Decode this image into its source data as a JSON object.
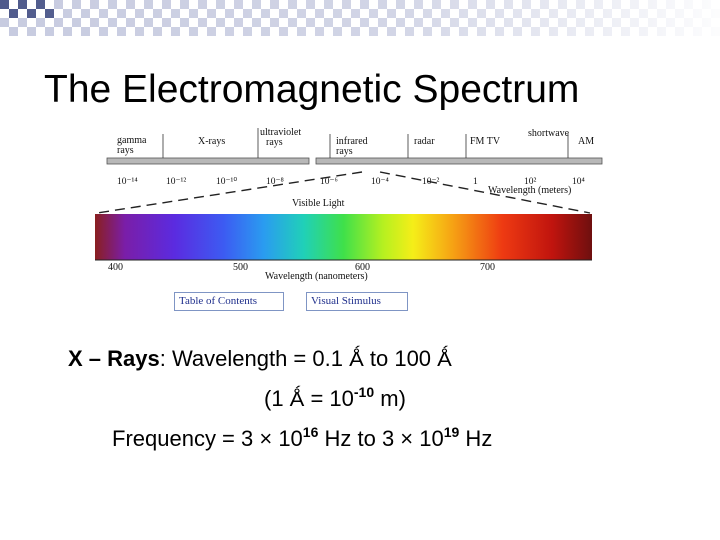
{
  "slide": {
    "title": "The Electromagnetic Spectrum"
  },
  "spectrum": {
    "bands": [
      "gamma\nrays",
      "X-rays",
      "ultraviolet\nrays",
      "infrared\nrays",
      "radar",
      "FM  TV",
      "shortwave",
      "AM"
    ],
    "wavelength_labels": [
      "10⁻¹⁴",
      "10⁻¹²",
      "10⁻¹⁰",
      "10⁻⁸",
      "10⁻⁶",
      "10⁻⁴",
      "10⁻²",
      "1",
      "10²",
      "10⁴"
    ],
    "wavelength_axis_label": "Wavelength (meters)",
    "visible_label": "Visible Light",
    "nm_ticks": [
      "400",
      "500",
      "600",
      "700"
    ],
    "nm_axis_label": "Wavelength (nanometers)"
  },
  "buttons": {
    "table_of_contents": "Table of Contents",
    "visual_stimulus": "Visual Stimulus"
  },
  "body": {
    "line1_term": "X – Rays",
    "line1_rest": ": Wavelength = 0.1 Ǻ to 100 Ǻ",
    "line2_prefix": "(1 Ǻ = 10",
    "line2_exp": "-10",
    "line2_suffix": " m)",
    "line3_prefix": "Frequency = 3 × 10",
    "line3_exp1": "16",
    "line3_mid": " Hz to 3 × 10",
    "line3_exp2": "19",
    "line3_suffix": " Hz"
  }
}
